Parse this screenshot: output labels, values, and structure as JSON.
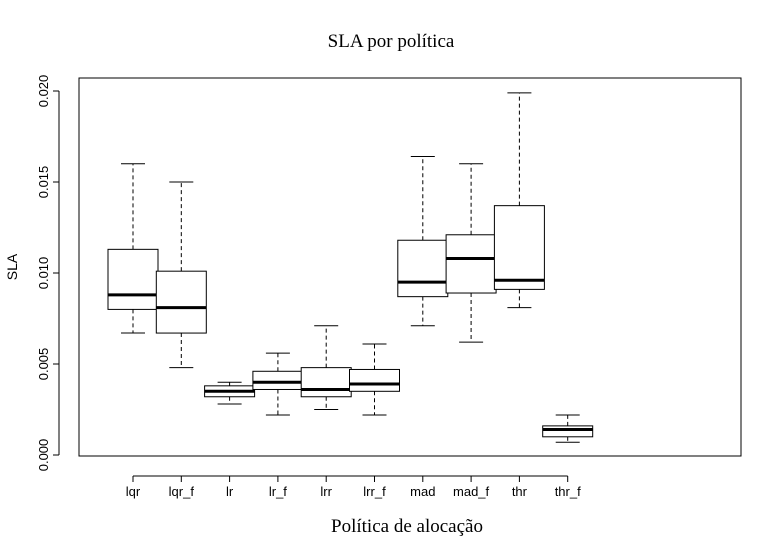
{
  "chart_data": {
    "type": "boxplot",
    "title": "SLA por política",
    "xlabel": "Política de alocação",
    "ylabel": "SLA",
    "ylim": [
      0.0,
      0.02
    ],
    "yticks": [
      "0.000",
      "0.005",
      "0.010",
      "0.015",
      "0.020"
    ],
    "ytick_values": [
      0.0,
      0.005,
      0.01,
      0.015,
      0.02
    ],
    "categories": [
      "lqr",
      "lqr_f",
      "lr",
      "lr_f",
      "lrr",
      "lrr_f",
      "mad",
      "mad_f",
      "thr",
      "thr_f"
    ],
    "boxes": [
      {
        "category": "lqr",
        "min": 0.0067,
        "q1": 0.008,
        "median": 0.0088,
        "q3": 0.0113,
        "max": 0.016
      },
      {
        "category": "lqr_f",
        "min": 0.0048,
        "q1": 0.0067,
        "median": 0.0081,
        "q3": 0.0101,
        "max": 0.015
      },
      {
        "category": "lr",
        "min": 0.0028,
        "q1": 0.0032,
        "median": 0.0035,
        "q3": 0.0038,
        "max": 0.004
      },
      {
        "category": "lr_f",
        "min": 0.0022,
        "q1": 0.0036,
        "median": 0.004,
        "q3": 0.0046,
        "max": 0.0056
      },
      {
        "category": "lrr",
        "min": 0.0025,
        "q1": 0.0032,
        "median": 0.0036,
        "q3": 0.0048,
        "max": 0.0071
      },
      {
        "category": "lrr_f",
        "min": 0.0022,
        "q1": 0.0035,
        "median": 0.0039,
        "q3": 0.0047,
        "max": 0.0061
      },
      {
        "category": "mad",
        "min": 0.0071,
        "q1": 0.0087,
        "median": 0.0095,
        "q3": 0.0118,
        "max": 0.0164
      },
      {
        "category": "mad_f",
        "min": 0.0062,
        "q1": 0.0089,
        "median": 0.0108,
        "q3": 0.0121,
        "max": 0.016
      },
      {
        "category": "thr",
        "min": 0.0081,
        "q1": 0.0091,
        "median": 0.0096,
        "q3": 0.0137,
        "max": 0.0199
      },
      {
        "category": "thr_f",
        "min": 0.0007,
        "q1": 0.001,
        "median": 0.0014,
        "q3": 0.0016,
        "max": 0.0022
      }
    ],
    "grid": false,
    "colors": {
      "box_fill": "#ffffff",
      "stroke": "#000000"
    }
  }
}
